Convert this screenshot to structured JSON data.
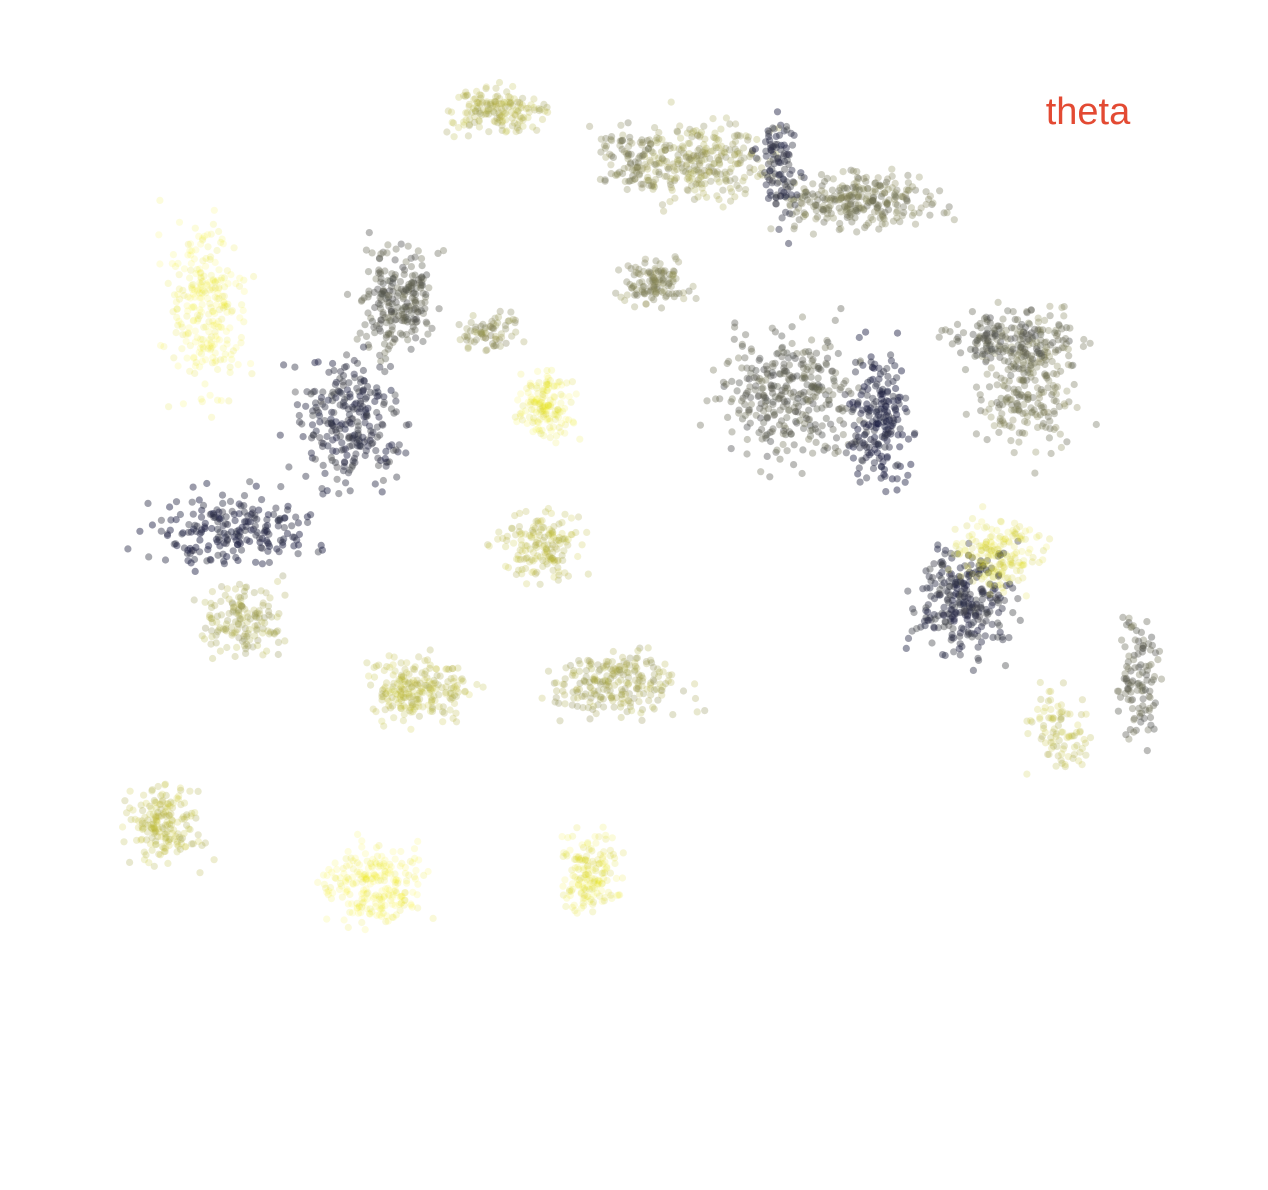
{
  "chart_data": {
    "type": "scatter",
    "title": "",
    "xlabel": "",
    "ylabel": "",
    "xlim": [
      0,
      1268
    ],
    "ylim": [
      0,
      1190
    ],
    "grid": false,
    "axes_visible": false,
    "color_scale": {
      "low": "#f7f200",
      "mid": "#8b8a55",
      "high": "#1d2044"
    },
    "annotations": [
      {
        "text": "theta",
        "color": "#e34a33",
        "x": 1088,
        "y": 1066
      }
    ],
    "clusters": [
      {
        "cx": 205,
        "cy": 880,
        "rx": 55,
        "ry": 120,
        "n": 260,
        "value": 0.05
      },
      {
        "cx": 495,
        "cy": 1080,
        "rx": 65,
        "ry": 35,
        "n": 160,
        "value": 0.35
      },
      {
        "cx": 398,
        "cy": 890,
        "rx": 55,
        "ry": 75,
        "n": 230,
        "value": 0.72
      },
      {
        "cx": 348,
        "cy": 770,
        "rx": 75,
        "ry": 100,
        "n": 260,
        "value": 0.9
      },
      {
        "cx": 235,
        "cy": 660,
        "rx": 115,
        "ry": 55,
        "n": 210,
        "value": 0.96
      },
      {
        "cx": 545,
        "cy": 785,
        "rx": 40,
        "ry": 45,
        "n": 150,
        "value": 0.08
      },
      {
        "cx": 540,
        "cy": 645,
        "rx": 55,
        "ry": 50,
        "n": 160,
        "value": 0.3
      },
      {
        "cx": 700,
        "cy": 1030,
        "rx": 95,
        "ry": 60,
        "n": 280,
        "value": 0.45
      },
      {
        "cx": 860,
        "cy": 990,
        "rx": 115,
        "ry": 40,
        "n": 280,
        "value": 0.6
      },
      {
        "cx": 655,
        "cy": 905,
        "rx": 55,
        "ry": 30,
        "n": 120,
        "value": 0.55
      },
      {
        "cx": 790,
        "cy": 795,
        "rx": 100,
        "ry": 95,
        "n": 340,
        "value": 0.72
      },
      {
        "cx": 880,
        "cy": 770,
        "rx": 45,
        "ry": 100,
        "n": 200,
        "value": 0.95
      },
      {
        "cx": 960,
        "cy": 590,
        "rx": 70,
        "ry": 75,
        "n": 280,
        "value": 0.9
      },
      {
        "cx": 1030,
        "cy": 810,
        "rx": 75,
        "ry": 110,
        "n": 260,
        "value": 0.6
      },
      {
        "cx": 1140,
        "cy": 510,
        "rx": 30,
        "ry": 90,
        "n": 110,
        "value": 0.7
      },
      {
        "cx": 1060,
        "cy": 460,
        "rx": 45,
        "ry": 60,
        "n": 90,
        "value": 0.3
      },
      {
        "cx": 420,
        "cy": 500,
        "rx": 75,
        "ry": 45,
        "n": 220,
        "value": 0.3
      },
      {
        "cx": 620,
        "cy": 505,
        "rx": 95,
        "ry": 45,
        "n": 230,
        "value": 0.4
      },
      {
        "cx": 375,
        "cy": 305,
        "rx": 75,
        "ry": 55,
        "n": 230,
        "value": 0.03
      },
      {
        "cx": 165,
        "cy": 365,
        "rx": 55,
        "ry": 55,
        "n": 180,
        "value": 0.3
      },
      {
        "cx": 240,
        "cy": 570,
        "rx": 60,
        "ry": 55,
        "n": 150,
        "value": 0.4
      },
      {
        "cx": 590,
        "cy": 315,
        "rx": 45,
        "ry": 55,
        "n": 160,
        "value": 0.12
      },
      {
        "cx": 1000,
        "cy": 635,
        "rx": 60,
        "ry": 50,
        "n": 180,
        "value": 0.15
      },
      {
        "cx": 1010,
        "cy": 850,
        "rx": 90,
        "ry": 40,
        "n": 150,
        "value": 0.72
      },
      {
        "cx": 490,
        "cy": 860,
        "rx": 40,
        "ry": 30,
        "n": 70,
        "value": 0.5
      },
      {
        "cx": 780,
        "cy": 1020,
        "rx": 30,
        "ry": 80,
        "n": 100,
        "value": 0.9
      },
      {
        "cx": 630,
        "cy": 1030,
        "rx": 55,
        "ry": 45,
        "n": 90,
        "value": 0.55
      }
    ]
  }
}
